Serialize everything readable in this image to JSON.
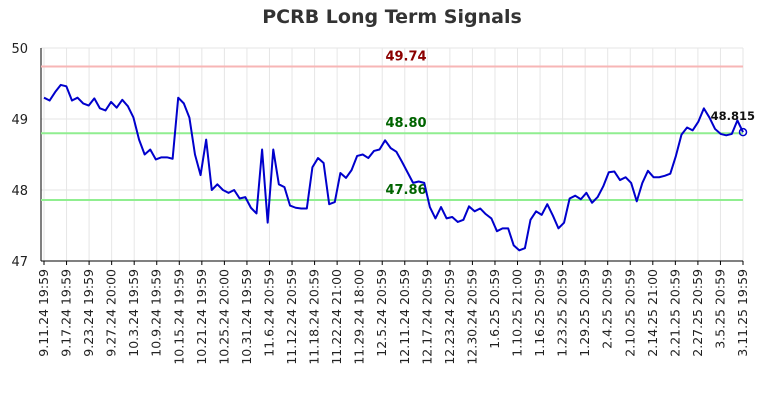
{
  "chart_data": {
    "type": "line",
    "title": "PCRB Long Term Signals",
    "xlabel": "",
    "ylabel": "",
    "ylim": [
      47,
      50
    ],
    "yticks": [
      "47",
      "48",
      "49",
      "50"
    ],
    "grid": true,
    "x_tick_labels": [
      "9.11.24 19:59",
      "9.17.24 19:59",
      "9.23.24 19:59",
      "9.27.24 20:00",
      "10.3.24 19:59",
      "10.9.24 19:59",
      "10.15.24 19:59",
      "10.21.24 19:59",
      "10.25.24 20:00",
      "10.31.24 19:59",
      "11.6.24 20:59",
      "11.12.24 20:59",
      "11.18.24 20:59",
      "11.22.24 21:00",
      "11.29.24 18:00",
      "12.5.24 20:59",
      "12.11.24 20:59",
      "12.17.24 20:59",
      "12.23.24 20:59",
      "12.30.24 20:59",
      "1.6.25 20:59",
      "1.10.25 21:00",
      "1.16.25 20:59",
      "1.23.25 20:59",
      "1.29.25 20:59",
      "2.4.25 20:59",
      "2.10.25 20:59",
      "2.14.25 21:00",
      "2.21.25 20:59",
      "2.27.25 20:59",
      "3.5.25 20:59",
      "3.11.25 19:59"
    ],
    "reference_lines": [
      {
        "value": 49.74,
        "label": "49.74",
        "line_color": "#f7b6b6",
        "label_color": "#8b0000"
      },
      {
        "value": 48.8,
        "label": "48.80",
        "line_color": "#90ee90",
        "label_color": "#006400"
      },
      {
        "value": 47.86,
        "label": "47.86",
        "line_color": "#90ee90",
        "label_color": "#006400"
      }
    ],
    "series": [
      {
        "color": "#0000cc",
        "values": [
          49.3,
          49.26,
          49.38,
          49.48,
          49.46,
          49.26,
          49.3,
          49.22,
          49.19,
          49.29,
          49.15,
          49.12,
          49.24,
          49.16,
          49.27,
          49.18,
          49.02,
          48.71,
          48.5,
          48.57,
          48.43,
          48.46,
          48.46,
          48.44,
          49.3,
          49.22,
          49.02,
          48.5,
          48.21,
          48.71,
          48.0,
          48.08,
          48.0,
          47.96,
          48.0,
          47.88,
          47.9,
          47.75,
          47.67,
          48.57,
          47.54,
          48.57,
          48.08,
          48.04,
          47.78,
          47.75,
          47.74,
          47.74,
          48.32,
          48.45,
          48.38,
          47.8,
          47.83,
          48.24,
          48.17,
          48.28,
          48.48,
          48.5,
          48.45,
          48.55,
          48.57,
          48.7,
          48.59,
          48.54,
          48.4,
          48.25,
          48.1,
          48.12,
          48.1,
          47.76,
          47.6,
          47.76,
          47.6,
          47.62,
          47.55,
          47.58,
          47.77,
          47.7,
          47.74,
          47.66,
          47.6,
          47.42,
          47.46,
          47.46,
          47.22,
          47.15,
          47.18,
          47.58,
          47.7,
          47.65,
          47.8,
          47.64,
          47.46,
          47.54,
          47.88,
          47.92,
          47.87,
          47.96,
          47.82,
          47.9,
          48.05,
          48.25,
          48.26,
          48.14,
          48.18,
          48.1,
          47.84,
          48.1,
          48.27,
          48.18,
          48.18,
          48.2,
          48.23,
          48.48,
          48.78,
          48.88,
          48.84,
          48.96,
          49.15,
          49.02,
          48.86,
          48.79,
          48.77,
          48.79,
          48.98,
          48.815
        ],
        "last_value_label": "48.815"
      }
    ]
  }
}
